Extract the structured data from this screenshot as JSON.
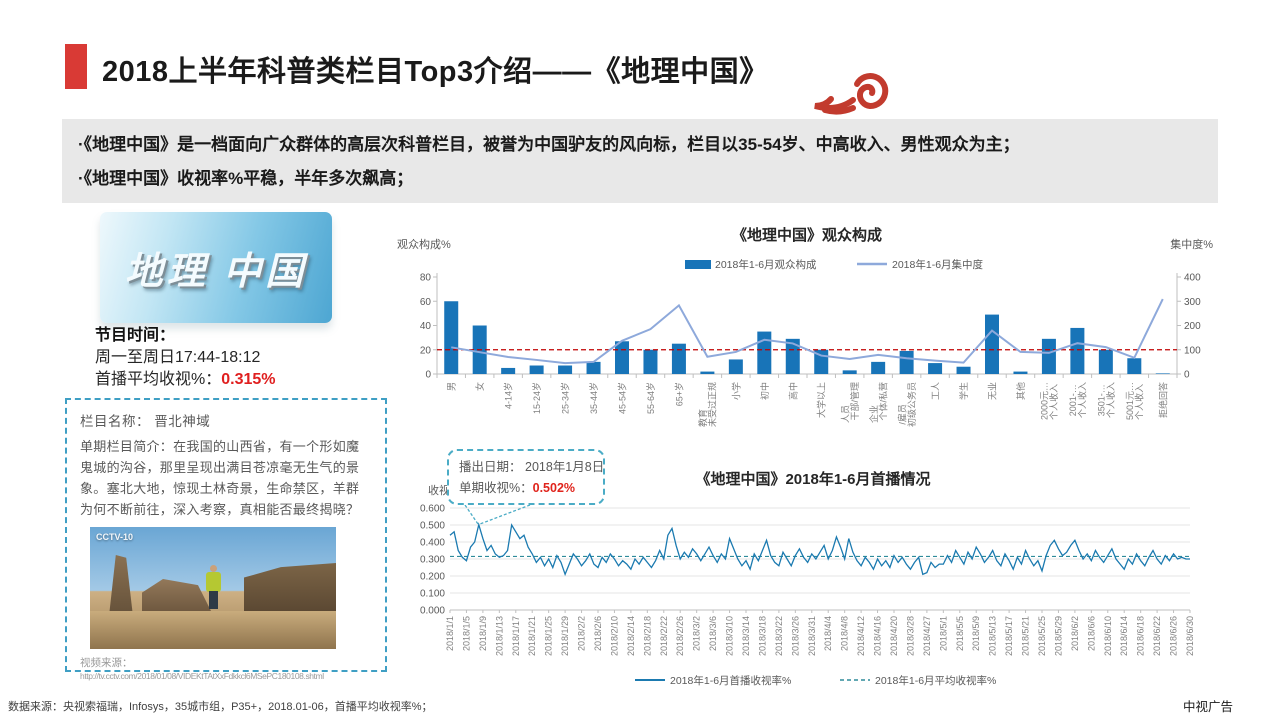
{
  "header": {
    "title": "2018上半年科普类栏目Top3介绍——《地理中国》",
    "accent_color": "#d93a35",
    "ornament_color": "#c23b2e"
  },
  "summary": {
    "bullets": [
      "·《地理中国》是一档面向广众群体的高层次科普栏目，被誉为中国驴友的风向标，栏目以35-54岁、中高收入、男性观众为主；",
      "·《地理中国》收视率%平稳，半年多次飙高；"
    ]
  },
  "program": {
    "logo_text": "地理 中国",
    "schedule_label": "节目时间：",
    "schedule": "周一至周日17:44-18:12",
    "rating_label": "首播平均收视%：",
    "rating_value": "0.315%"
  },
  "episode": {
    "name_label": "栏目名称：",
    "name": "晋北神域",
    "intro": "单期栏目简介：在我国的山西省，有一个形如魔鬼城的沟谷，那里呈现出满目苍凉毫无生气的景象。塞北大地，惊现土林奇景，生命禁区，羊群为何不断前往，深入考察，真相能否最终揭晓？",
    "photo_watermark": "CCTV-10",
    "source_label": "视频来源：",
    "source_url": "http://tv.cctv.com/2018/01/08/VIDEKtTAtXxFdkkcl6MSePC180108.shtml"
  },
  "footer": {
    "source": "数据来源：央视索福瑞，Infosys，35城市组，P35+，2018.01-06，首播平均收视率%；",
    "brand": "中视广告"
  },
  "chart_data": [
    {
      "type": "bar",
      "title": "《地理中国》观众构成",
      "ylabel_left": "观众构成%",
      "ylabel_right": "集中度%",
      "ylim_left": [
        0,
        80
      ],
      "yticks_left": [
        0,
        20,
        40,
        60,
        80
      ],
      "ylim_right": [
        0,
        400
      ],
      "yticks_right": [
        0,
        100,
        200,
        300,
        400
      ],
      "reference_line_left": 20,
      "legend": [
        "2018年1-6月观众构成",
        "2018年1-6月集中度"
      ],
      "legend_position": "top",
      "colors": {
        "bar": "#1874b8",
        "line": "#8ea9db",
        "reference": "#c00000"
      },
      "categories": [
        "男",
        "女",
        "4-14岁",
        "15-24岁",
        "25-34岁",
        "35-44岁",
        "45-54岁",
        "55-64岁",
        "65+岁",
        "未受过正规教育",
        "小学",
        "初中",
        "高中",
        "大学以上",
        "干部/管理人员",
        "个体/私营企业",
        "初级公务员/雇员",
        "工人",
        "学生",
        "无业",
        "其他",
        "个人收入2000元…",
        "个人收入2001-…",
        "个人收入3501-…",
        "个人收入5001元…",
        "拒绝回答"
      ],
      "display_labels": [
        [
          "男"
        ],
        [
          "女"
        ],
        [
          "4-14岁"
        ],
        [
          "15-24岁"
        ],
        [
          "25-34岁"
        ],
        [
          "35-44岁"
        ],
        [
          "45-54岁"
        ],
        [
          "55-64岁"
        ],
        [
          "65+岁"
        ],
        [
          "未受过正规",
          "教育"
        ],
        [
          "小学"
        ],
        [
          "初中"
        ],
        [
          "高中"
        ],
        [
          "大学以上"
        ],
        [
          "干部/管理",
          "人员"
        ],
        [
          "个体/私营",
          "企业"
        ],
        [
          "初级公务员",
          "/雇员"
        ],
        [
          "工人"
        ],
        [
          "学生"
        ],
        [
          "无业"
        ],
        [
          "其他"
        ],
        [
          "个人收入",
          "2000元…"
        ],
        [
          "个人收入",
          "2001-…"
        ],
        [
          "个人收入",
          "3501-…"
        ],
        [
          "个人收入",
          "5001元…"
        ],
        [
          "拒绝回答"
        ]
      ],
      "series": [
        {
          "name": "2018年1-6月观众构成",
          "type": "bar",
          "axis": "left",
          "values": [
            60,
            40,
            5,
            7,
            7,
            10,
            27,
            20,
            25,
            2,
            12,
            35,
            29,
            20,
            3,
            10,
            19,
            9,
            6,
            49,
            2,
            29,
            38,
            20,
            13,
            0.5
          ]
        },
        {
          "name": "2018年1-6月集中度",
          "type": "line",
          "axis": "right",
          "values": [
            110,
            90,
            70,
            58,
            45,
            50,
            137,
            185,
            283,
            71,
            91,
            141,
            126,
            76,
            62,
            79,
            65,
            55,
            47,
            179,
            91,
            87,
            127,
            111,
            67,
            309
          ]
        }
      ]
    },
    {
      "type": "line",
      "title": "《地理中国》2018年1-6月首播情况",
      "ylabel": "收视率%",
      "ylim": [
        0,
        0.6
      ],
      "yticks": [
        "0.000",
        "0.100",
        "0.200",
        "0.300",
        "0.400",
        "0.500",
        "0.600"
      ],
      "grid": true,
      "legend_position": "bottom",
      "x_tick_labels": [
        "2018/1/1",
        "2018/1/5",
        "2018/1/9",
        "2018/1/13",
        "2018/1/17",
        "2018/1/21",
        "2018/1/25",
        "2018/1/29",
        "2018/2/2",
        "2018/2/6",
        "2018/2/10",
        "2018/2/14",
        "2018/2/18",
        "2018/2/22",
        "2018/2/26",
        "2018/3/2",
        "2018/3/6",
        "2018/3/10",
        "2018/3/14",
        "2018/3/18",
        "2018/3/22",
        "2018/3/26",
        "2018/3/31",
        "2018/4/4",
        "2018/4/8",
        "2018/4/12",
        "2018/4/16",
        "2018/4/20",
        "2018/3/28",
        "2018/4/27",
        "2018/5/1",
        "2018/5/5",
        "2018/5/9",
        "2018/5/13",
        "2018/5/17",
        "2018/5/21",
        "2018/5/25",
        "2018/5/29",
        "2018/6/2",
        "2018/6/6",
        "2018/6/10",
        "2018/6/14",
        "2018/6/18",
        "2018/6/22",
        "2018/6/26",
        "2018/6/30"
      ],
      "series": [
        {
          "name": "2018年1-6月首播收视率%",
          "style": "solid",
          "color": "#1b7ab0",
          "values": [
            0.44,
            0.46,
            0.35,
            0.31,
            0.29,
            0.37,
            0.4,
            0.502,
            0.42,
            0.35,
            0.38,
            0.33,
            0.31,
            0.32,
            0.35,
            0.5,
            0.46,
            0.42,
            0.44,
            0.37,
            0.33,
            0.28,
            0.31,
            0.26,
            0.3,
            0.25,
            0.32,
            0.28,
            0.21,
            0.27,
            0.33,
            0.3,
            0.26,
            0.29,
            0.33,
            0.27,
            0.25,
            0.31,
            0.28,
            0.33,
            0.3,
            0.26,
            0.29,
            0.27,
            0.24,
            0.3,
            0.27,
            0.31,
            0.28,
            0.25,
            0.29,
            0.35,
            0.3,
            0.44,
            0.48,
            0.38,
            0.3,
            0.34,
            0.31,
            0.36,
            0.33,
            0.29,
            0.33,
            0.37,
            0.32,
            0.28,
            0.33,
            0.3,
            0.42,
            0.36,
            0.3,
            0.26,
            0.29,
            0.24,
            0.33,
            0.29,
            0.35,
            0.41,
            0.32,
            0.28,
            0.26,
            0.34,
            0.3,
            0.26,
            0.32,
            0.36,
            0.31,
            0.28,
            0.33,
            0.3,
            0.34,
            0.38,
            0.3,
            0.35,
            0.43,
            0.37,
            0.3,
            0.42,
            0.34,
            0.29,
            0.26,
            0.31,
            0.28,
            0.24,
            0.3,
            0.26,
            0.29,
            0.25,
            0.32,
            0.28,
            0.31,
            0.27,
            0.24,
            0.28,
            0.31,
            0.21,
            0.22,
            0.28,
            0.25,
            0.27,
            0.27,
            0.32,
            0.28,
            0.35,
            0.31,
            0.27,
            0.34,
            0.3,
            0.37,
            0.33,
            0.28,
            0.31,
            0.35,
            0.29,
            0.26,
            0.33,
            0.29,
            0.24,
            0.31,
            0.27,
            0.35,
            0.3,
            0.26,
            0.29,
            0.23,
            0.32,
            0.38,
            0.41,
            0.36,
            0.32,
            0.34,
            0.38,
            0.41,
            0.35,
            0.3,
            0.33,
            0.29,
            0.35,
            0.31,
            0.28,
            0.32,
            0.36,
            0.3,
            0.27,
            0.24,
            0.3,
            0.27,
            0.33,
            0.29,
            0.26,
            0.31,
            0.35,
            0.3,
            0.27,
            0.32,
            0.29,
            0.33,
            0.3,
            0.31,
            0.3,
            0.3
          ]
        },
        {
          "name": "2018年1-6月平均收视率%",
          "style": "dashed",
          "color": "#2e8b9a",
          "average": 0.315
        }
      ],
      "annotation": {
        "date_label": "播出日期：",
        "date": "2018年1月8日",
        "rating_label": "单期收视%：",
        "rating": "0.502%"
      }
    }
  ]
}
